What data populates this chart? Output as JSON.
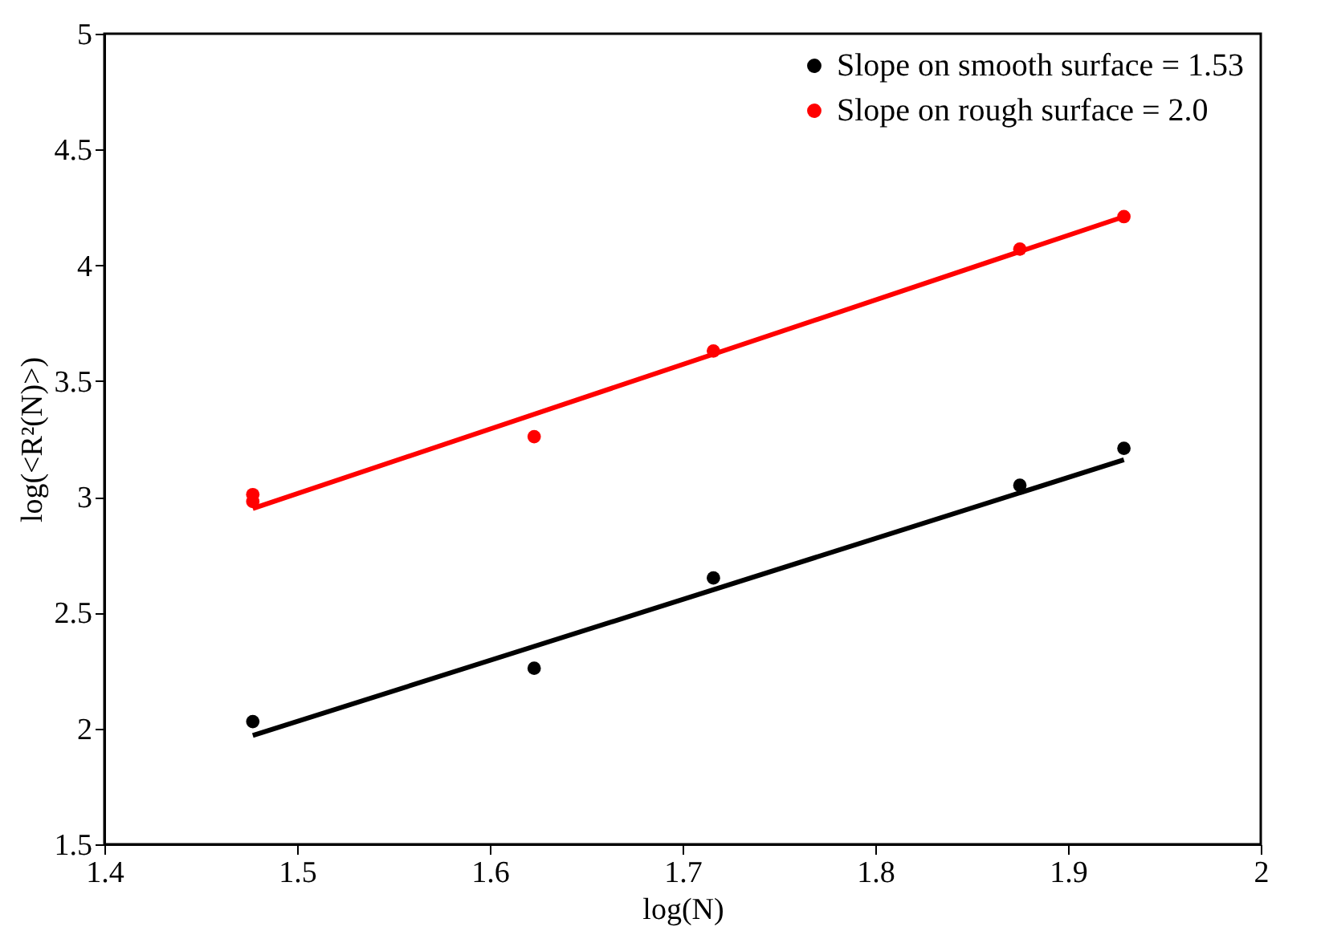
{
  "chart_data": {
    "type": "scatter",
    "xlabel": "log(N)",
    "ylabel": "log(<R²(N)>)",
    "xlim": [
      1.4,
      2
    ],
    "xticks": [
      1.4,
      1.5,
      1.6,
      1.7,
      1.8,
      1.9,
      2
    ],
    "ylim": [
      1.5,
      5
    ],
    "yticks": [
      1.5,
      2,
      2.5,
      3,
      3.5,
      4,
      4.5,
      5
    ],
    "grid": false,
    "legend": "top right",
    "marker": "circle",
    "series": [
      {
        "name": "Slope on smooth surface = 1.53",
        "color": "#000000",
        "x": [
          1.477,
          1.623,
          1.716,
          1.875,
          1.929
        ],
        "values": [
          2.03,
          2.26,
          2.65,
          3.05,
          3.21
        ]
      },
      {
        "name": "Slope on rough surface =  2.0",
        "color": "#ff0000",
        "x": [
          1.477,
          1.477,
          1.623,
          1.716,
          1.875,
          1.929
        ],
        "values": [
          3.01,
          2.98,
          3.26,
          3.63,
          4.07,
          4.21
        ]
      },
      {
        "color": "#000000",
        "type": "line",
        "line_style": "solid",
        "marker": "none",
        "x": [
          1.477,
          1.929
        ],
        "values": [
          1.97,
          3.16
        ]
      },
      {
        "color": "#ff0000",
        "type": "line",
        "line_style": "solid",
        "marker": "none",
        "x": [
          1.477,
          1.929
        ],
        "values": [
          2.95,
          4.21
        ]
      }
    ]
  }
}
